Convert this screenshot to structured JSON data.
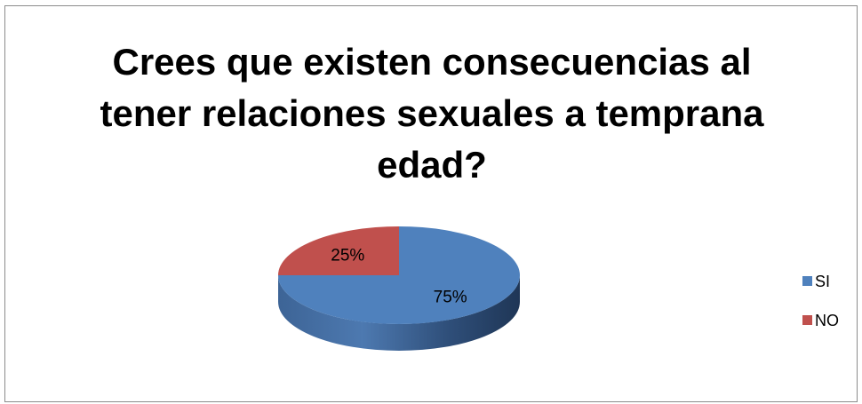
{
  "chart_data": {
    "type": "pie",
    "title_lines": [
      "Crees que existen consecuencias al",
      "tener relaciones sexuales a temprana",
      "edad?"
    ],
    "categories": [
      "SI",
      "NO"
    ],
    "values": [
      75,
      25
    ],
    "data_labels": [
      "75%",
      "25%"
    ],
    "colors": [
      "#4f81bd",
      "#c0504d"
    ],
    "legend_position": "right",
    "style": "3d"
  }
}
